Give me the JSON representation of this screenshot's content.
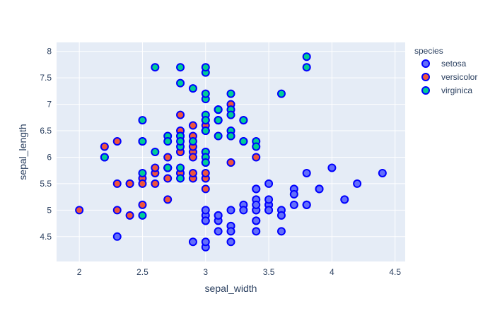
{
  "chart_data": {
    "type": "scatter",
    "xlabel": "sepal_width",
    "ylabel": "sepal_length",
    "xlim": [
      1.82,
      4.58
    ],
    "ylim": [
      4.03,
      8.17
    ],
    "xticks": [
      2,
      2.5,
      3,
      3.5,
      4,
      4.5
    ],
    "xtick_labels": [
      "2",
      "2.5",
      "3",
      "3.5",
      "4",
      "4.5"
    ],
    "yticks": [
      4.5,
      5,
      5.5,
      6,
      6.5,
      7,
      7.5,
      8
    ],
    "ytick_labels": [
      "4.5",
      "5",
      "5.5",
      "6",
      "6.5",
      "7",
      "7.5",
      "8"
    ],
    "grid": true,
    "plot_background": "#E5ECF6",
    "marker_outline": "#0000FF",
    "legend": {
      "title": "species",
      "placement": "right"
    },
    "series": [
      {
        "name": "setosa",
        "color": "#636EFA",
        "points": [
          [
            3.5,
            5.1
          ],
          [
            3.0,
            4.9
          ],
          [
            3.2,
            4.7
          ],
          [
            3.1,
            4.6
          ],
          [
            3.6,
            5.0
          ],
          [
            3.9,
            5.4
          ],
          [
            3.4,
            4.6
          ],
          [
            3.4,
            5.0
          ],
          [
            2.9,
            4.4
          ],
          [
            3.1,
            4.9
          ],
          [
            3.7,
            5.4
          ],
          [
            3.4,
            4.8
          ],
          [
            3.0,
            4.8
          ],
          [
            3.0,
            4.3
          ],
          [
            4.0,
            5.8
          ],
          [
            4.4,
            5.7
          ],
          [
            3.9,
            5.4
          ],
          [
            3.5,
            5.1
          ],
          [
            3.8,
            5.7
          ],
          [
            3.8,
            5.1
          ],
          [
            3.4,
            5.4
          ],
          [
            3.7,
            5.1
          ],
          [
            3.6,
            4.6
          ],
          [
            3.3,
            5.1
          ],
          [
            3.4,
            4.8
          ],
          [
            3.0,
            5.0
          ],
          [
            3.4,
            5.0
          ],
          [
            3.5,
            5.2
          ],
          [
            3.4,
            5.2
          ],
          [
            3.2,
            4.7
          ],
          [
            3.1,
            4.8
          ],
          [
            3.4,
            5.4
          ],
          [
            4.1,
            5.2
          ],
          [
            4.2,
            5.5
          ],
          [
            3.1,
            4.9
          ],
          [
            3.2,
            5.0
          ],
          [
            3.5,
            5.5
          ],
          [
            3.6,
            4.9
          ],
          [
            3.0,
            4.4
          ],
          [
            3.4,
            5.1
          ],
          [
            3.5,
            5.0
          ],
          [
            2.3,
            4.5
          ],
          [
            3.2,
            4.4
          ],
          [
            3.5,
            5.0
          ],
          [
            3.8,
            5.1
          ],
          [
            3.0,
            4.8
          ],
          [
            3.8,
            5.1
          ],
          [
            3.2,
            4.6
          ],
          [
            3.7,
            5.3
          ],
          [
            3.3,
            5.0
          ]
        ]
      },
      {
        "name": "versicolor",
        "color": "#EF553B",
        "points": [
          [
            3.2,
            7.0
          ],
          [
            3.2,
            6.4
          ],
          [
            3.1,
            6.9
          ],
          [
            2.3,
            5.5
          ],
          [
            2.8,
            6.5
          ],
          [
            2.8,
            5.7
          ],
          [
            3.3,
            6.3
          ],
          [
            2.4,
            4.9
          ],
          [
            2.9,
            6.6
          ],
          [
            2.7,
            5.2
          ],
          [
            2.0,
            5.0
          ],
          [
            3.0,
            5.9
          ],
          [
            2.2,
            6.0
          ],
          [
            2.9,
            6.1
          ],
          [
            2.9,
            5.6
          ],
          [
            3.1,
            6.7
          ],
          [
            3.0,
            5.6
          ],
          [
            2.7,
            5.8
          ],
          [
            2.2,
            6.2
          ],
          [
            2.5,
            5.6
          ],
          [
            3.2,
            5.9
          ],
          [
            2.8,
            6.1
          ],
          [
            2.5,
            6.3
          ],
          [
            2.8,
            6.1
          ],
          [
            2.9,
            6.4
          ],
          [
            3.0,
            6.6
          ],
          [
            2.8,
            6.8
          ],
          [
            3.0,
            6.7
          ],
          [
            2.9,
            6.0
          ],
          [
            2.6,
            5.7
          ],
          [
            2.4,
            5.5
          ],
          [
            2.4,
            5.5
          ],
          [
            2.7,
            5.8
          ],
          [
            2.7,
            6.0
          ],
          [
            3.0,
            5.4
          ],
          [
            3.4,
            6.0
          ],
          [
            3.1,
            6.7
          ],
          [
            2.3,
            6.3
          ],
          [
            3.0,
            5.6
          ],
          [
            2.5,
            5.5
          ],
          [
            2.6,
            5.5
          ],
          [
            3.0,
            6.1
          ],
          [
            2.6,
            5.8
          ],
          [
            2.3,
            5.0
          ],
          [
            2.7,
            5.6
          ],
          [
            3.0,
            5.7
          ],
          [
            2.9,
            5.7
          ],
          [
            2.9,
            6.2
          ],
          [
            2.5,
            5.1
          ],
          [
            2.8,
            5.7
          ]
        ]
      },
      {
        "name": "virginica",
        "color": "#00CC96",
        "points": [
          [
            3.3,
            6.3
          ],
          [
            2.7,
            5.8
          ],
          [
            3.0,
            7.1
          ],
          [
            2.9,
            6.3
          ],
          [
            3.0,
            6.5
          ],
          [
            3.0,
            7.6
          ],
          [
            2.5,
            4.9
          ],
          [
            2.9,
            7.3
          ],
          [
            2.5,
            6.7
          ],
          [
            3.6,
            7.2
          ],
          [
            3.2,
            6.5
          ],
          [
            2.7,
            6.4
          ],
          [
            3.0,
            6.8
          ],
          [
            2.5,
            5.7
          ],
          [
            2.8,
            5.8
          ],
          [
            3.2,
            6.4
          ],
          [
            3.0,
            6.5
          ],
          [
            3.8,
            7.7
          ],
          [
            2.6,
            7.7
          ],
          [
            2.2,
            6.0
          ],
          [
            3.2,
            6.9
          ],
          [
            2.8,
            5.6
          ],
          [
            2.8,
            7.7
          ],
          [
            2.7,
            6.3
          ],
          [
            3.3,
            6.7
          ],
          [
            3.2,
            7.2
          ],
          [
            2.8,
            6.2
          ],
          [
            3.0,
            6.1
          ],
          [
            2.8,
            6.4
          ],
          [
            3.0,
            7.2
          ],
          [
            2.8,
            7.4
          ],
          [
            3.8,
            7.9
          ],
          [
            2.8,
            6.4
          ],
          [
            2.8,
            6.3
          ],
          [
            2.6,
            6.1
          ],
          [
            3.0,
            7.7
          ],
          [
            3.4,
            6.3
          ],
          [
            3.1,
            6.4
          ],
          [
            3.0,
            6.0
          ],
          [
            3.1,
            6.9
          ],
          [
            3.1,
            6.7
          ],
          [
            3.1,
            6.9
          ],
          [
            2.7,
            5.8
          ],
          [
            3.2,
            6.8
          ],
          [
            3.3,
            6.7
          ],
          [
            3.0,
            6.7
          ],
          [
            2.5,
            6.3
          ],
          [
            3.0,
            6.5
          ],
          [
            3.4,
            6.2
          ],
          [
            3.0,
            5.9
          ]
        ]
      }
    ]
  }
}
